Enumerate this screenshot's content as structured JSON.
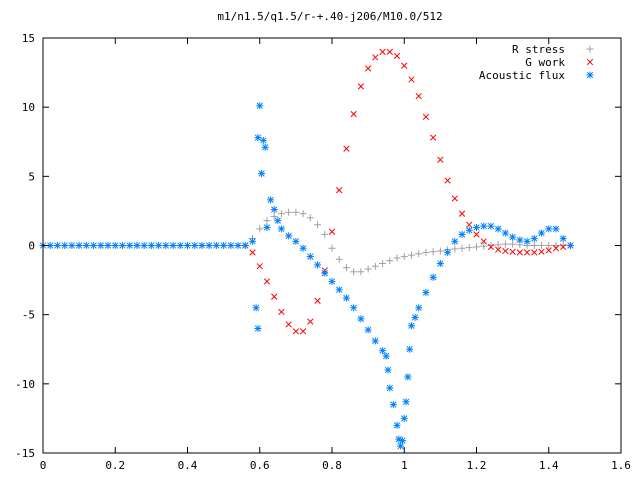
{
  "chart_data": {
    "type": "scatter",
    "title": "m1/n1.5/q1.5/r-+.40-j206/M10.0/512",
    "xlabel": "",
    "ylabel": "",
    "xlim": [
      0,
      1.6
    ],
    "ylim": [
      -15,
      15
    ],
    "xticks": [
      0,
      0.2,
      0.4,
      0.6,
      0.8,
      1,
      1.2,
      1.4,
      1.6
    ],
    "xtick_labels": [
      "0",
      "0.2",
      "0.4",
      "0.6",
      "0.8",
      "1",
      "1.2",
      "1.4",
      "1.6"
    ],
    "yticks": [
      -15,
      -10,
      -5,
      0,
      5,
      10,
      15
    ],
    "ytick_labels": [
      "-15",
      "-10",
      "-5",
      "0",
      "5",
      "10",
      "15"
    ],
    "grid": false,
    "legend_position": "top-right",
    "series": [
      {
        "name": "R stress",
        "marker": "plus",
        "color": "#a0a0a0",
        "points": [
          [
            0.56,
            0
          ],
          [
            0.58,
            0.5
          ],
          [
            0.6,
            1.2
          ],
          [
            0.62,
            1.8
          ],
          [
            0.64,
            2.1
          ],
          [
            0.66,
            2.3
          ],
          [
            0.68,
            2.4
          ],
          [
            0.7,
            2.4
          ],
          [
            0.72,
            2.3
          ],
          [
            0.74,
            2.0
          ],
          [
            0.76,
            1.5
          ],
          [
            0.78,
            0.8
          ],
          [
            0.8,
            -0.2
          ],
          [
            0.82,
            -1.0
          ],
          [
            0.84,
            -1.6
          ],
          [
            0.86,
            -1.9
          ],
          [
            0.88,
            -1.9
          ],
          [
            0.9,
            -1.7
          ],
          [
            0.92,
            -1.5
          ],
          [
            0.94,
            -1.3
          ],
          [
            0.96,
            -1.1
          ],
          [
            0.98,
            -0.9
          ],
          [
            1.0,
            -0.8
          ],
          [
            1.02,
            -0.7
          ],
          [
            1.04,
            -0.6
          ],
          [
            1.06,
            -0.5
          ],
          [
            1.08,
            -0.45
          ],
          [
            1.1,
            -0.4
          ],
          [
            1.12,
            -0.3
          ],
          [
            1.14,
            -0.25
          ],
          [
            1.16,
            -0.2
          ],
          [
            1.18,
            -0.15
          ],
          [
            1.2,
            -0.1
          ],
          [
            1.22,
            -0.05
          ],
          [
            1.24,
            0
          ],
          [
            1.26,
            0.05
          ],
          [
            1.28,
            0.1
          ],
          [
            1.3,
            0.1
          ],
          [
            1.32,
            0.05
          ],
          [
            1.34,
            0
          ],
          [
            1.36,
            0
          ],
          [
            1.38,
            0
          ],
          [
            1.4,
            0
          ],
          [
            1.42,
            0
          ],
          [
            1.44,
            0
          ],
          [
            1.46,
            0
          ]
        ]
      },
      {
        "name": "G work",
        "marker": "cross",
        "color": "#ff0000",
        "points": [
          [
            0.56,
            0
          ],
          [
            0.58,
            -0.5
          ],
          [
            0.6,
            -1.5
          ],
          [
            0.62,
            -2.6
          ],
          [
            0.64,
            -3.7
          ],
          [
            0.66,
            -4.8
          ],
          [
            0.68,
            -5.7
          ],
          [
            0.7,
            -6.2
          ],
          [
            0.72,
            -6.2
          ],
          [
            0.74,
            -5.5
          ],
          [
            0.76,
            -4.0
          ],
          [
            0.78,
            -1.8
          ],
          [
            0.8,
            1.0
          ],
          [
            0.82,
            4.0
          ],
          [
            0.84,
            7.0
          ],
          [
            0.86,
            9.5
          ],
          [
            0.88,
            11.5
          ],
          [
            0.9,
            12.8
          ],
          [
            0.92,
            13.6
          ],
          [
            0.94,
            14.0
          ],
          [
            0.96,
            14.0
          ],
          [
            0.98,
            13.7
          ],
          [
            1.0,
            13.0
          ],
          [
            1.02,
            12.0
          ],
          [
            1.04,
            10.8
          ],
          [
            1.06,
            9.3
          ],
          [
            1.08,
            7.8
          ],
          [
            1.1,
            6.2
          ],
          [
            1.12,
            4.7
          ],
          [
            1.14,
            3.4
          ],
          [
            1.16,
            2.3
          ],
          [
            1.18,
            1.5
          ],
          [
            1.2,
            0.8
          ],
          [
            1.22,
            0.3
          ],
          [
            1.24,
            -0.1
          ],
          [
            1.26,
            -0.3
          ],
          [
            1.28,
            -0.4
          ],
          [
            1.3,
            -0.45
          ],
          [
            1.32,
            -0.5
          ],
          [
            1.34,
            -0.5
          ],
          [
            1.36,
            -0.5
          ],
          [
            1.38,
            -0.45
          ],
          [
            1.4,
            -0.35
          ],
          [
            1.42,
            -0.2
          ],
          [
            1.44,
            -0.1
          ],
          [
            1.46,
            0
          ]
        ]
      },
      {
        "name": "Acoustic flux",
        "marker": "star",
        "color": "#0080ff",
        "points": [
          [
            0.0,
            0
          ],
          [
            0.02,
            0
          ],
          [
            0.04,
            0
          ],
          [
            0.06,
            0
          ],
          [
            0.08,
            0
          ],
          [
            0.1,
            0
          ],
          [
            0.12,
            0
          ],
          [
            0.14,
            0
          ],
          [
            0.16,
            0
          ],
          [
            0.18,
            0
          ],
          [
            0.2,
            0
          ],
          [
            0.22,
            0
          ],
          [
            0.24,
            0
          ],
          [
            0.26,
            0
          ],
          [
            0.28,
            0
          ],
          [
            0.3,
            0
          ],
          [
            0.32,
            0
          ],
          [
            0.34,
            0
          ],
          [
            0.36,
            0
          ],
          [
            0.38,
            0
          ],
          [
            0.4,
            0
          ],
          [
            0.42,
            0
          ],
          [
            0.44,
            0
          ],
          [
            0.46,
            0
          ],
          [
            0.48,
            0
          ],
          [
            0.5,
            0
          ],
          [
            0.52,
            0
          ],
          [
            0.54,
            0
          ],
          [
            0.56,
            0
          ],
          [
            0.58,
            0.3
          ],
          [
            0.59,
            -4.5
          ],
          [
            0.595,
            -6.0
          ],
          [
            0.595,
            7.8
          ],
          [
            0.6,
            10.1
          ],
          [
            0.605,
            5.2
          ],
          [
            0.61,
            7.6
          ],
          [
            0.615,
            7.1
          ],
          [
            0.62,
            1.3
          ],
          [
            0.63,
            3.3
          ],
          [
            0.64,
            2.6
          ],
          [
            0.65,
            1.8
          ],
          [
            0.66,
            1.2
          ],
          [
            0.68,
            0.7
          ],
          [
            0.7,
            0.3
          ],
          [
            0.72,
            -0.2
          ],
          [
            0.74,
            -0.8
          ],
          [
            0.76,
            -1.4
          ],
          [
            0.78,
            -2.0
          ],
          [
            0.8,
            -2.6
          ],
          [
            0.82,
            -3.2
          ],
          [
            0.84,
            -3.8
          ],
          [
            0.86,
            -4.5
          ],
          [
            0.88,
            -5.3
          ],
          [
            0.9,
            -6.1
          ],
          [
            0.92,
            -6.9
          ],
          [
            0.94,
            -7.6
          ],
          [
            0.95,
            -8.0
          ],
          [
            0.955,
            -9.0
          ],
          [
            0.96,
            -10.3
          ],
          [
            0.97,
            -11.5
          ],
          [
            0.98,
            -13.0
          ],
          [
            0.985,
            -14.0
          ],
          [
            0.99,
            -14.5
          ],
          [
            0.995,
            -14.1
          ],
          [
            1.0,
            -12.5
          ],
          [
            1.005,
            -11.3
          ],
          [
            1.01,
            -9.5
          ],
          [
            1.015,
            -7.5
          ],
          [
            1.02,
            -5.8
          ],
          [
            1.03,
            -5.2
          ],
          [
            1.04,
            -4.5
          ],
          [
            1.06,
            -3.4
          ],
          [
            1.08,
            -2.3
          ],
          [
            1.1,
            -1.3
          ],
          [
            1.12,
            -0.5
          ],
          [
            1.14,
            0.3
          ],
          [
            1.16,
            0.8
          ],
          [
            1.18,
            1.1
          ],
          [
            1.2,
            1.3
          ],
          [
            1.22,
            1.4
          ],
          [
            1.24,
            1.4
          ],
          [
            1.26,
            1.2
          ],
          [
            1.28,
            0.9
          ],
          [
            1.3,
            0.6
          ],
          [
            1.32,
            0.4
          ],
          [
            1.34,
            0.3
          ],
          [
            1.36,
            0.5
          ],
          [
            1.38,
            0.9
          ],
          [
            1.4,
            1.2
          ],
          [
            1.42,
            1.2
          ],
          [
            1.44,
            0.5
          ],
          [
            1.46,
            0
          ]
        ]
      }
    ]
  }
}
